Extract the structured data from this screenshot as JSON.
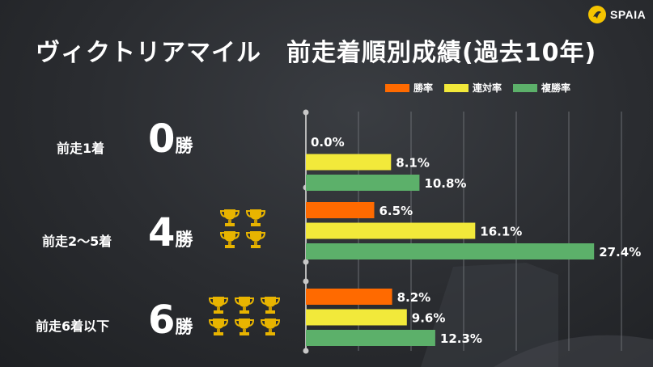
{
  "brand": {
    "name": "SPAIA"
  },
  "title": "ヴィクトリアマイル　前走着順別成績(過去10年)",
  "legend": [
    {
      "label": "勝率",
      "color": "#ff6a00"
    },
    {
      "label": "連対率",
      "color": "#f2e93a"
    },
    {
      "label": "複勝率",
      "color": "#5cb06a"
    }
  ],
  "rows": [
    {
      "label": "前走1着",
      "wins_num": "0",
      "wins_unit": "勝",
      "trophies": 0
    },
    {
      "label": "前走2～5着",
      "wins_num": "4",
      "wins_unit": "勝",
      "trophies": 4
    },
    {
      "label": "前走6着以下",
      "wins_num": "6",
      "wins_unit": "勝",
      "trophies": 6
    }
  ],
  "chart_data": {
    "type": "bar",
    "orientation": "horizontal",
    "categories": [
      "前走1着",
      "前走2～5着",
      "前走6着以下"
    ],
    "series": [
      {
        "name": "勝率",
        "color": "#ff6a00",
        "values": [
          0.0,
          6.5,
          8.2
        ],
        "labels": [
          "0.0%",
          "6.5%",
          "8.2%"
        ]
      },
      {
        "name": "連対率",
        "color": "#f2e93a",
        "values": [
          8.1,
          16.1,
          9.6
        ],
        "labels": [
          "8.1%",
          "16.1%",
          "9.6%"
        ]
      },
      {
        "name": "複勝率",
        "color": "#5cb06a",
        "values": [
          10.8,
          27.4,
          12.3
        ],
        "labels": [
          "10.8%",
          "27.4%",
          "12.3%"
        ]
      }
    ],
    "xlim": [
      0,
      30
    ],
    "grid": true,
    "legend_position": "top-right"
  }
}
